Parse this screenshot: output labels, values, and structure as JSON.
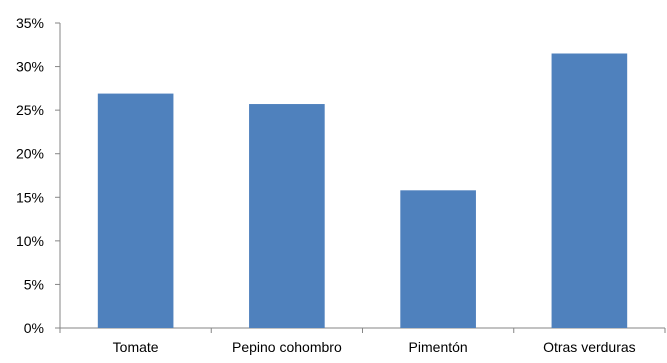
{
  "chart_data": {
    "type": "bar",
    "categories": [
      "Tomate",
      "Pepino cohombro",
      "Pimentón",
      "Otras verduras"
    ],
    "values": [
      26.9,
      25.7,
      15.8,
      31.5
    ],
    "ylim": [
      0,
      35
    ],
    "yticks": [
      0,
      5,
      10,
      15,
      20,
      25,
      30,
      35
    ],
    "ytick_labels": [
      "0%",
      "5%",
      "10%",
      "15%",
      "20%",
      "25%",
      "30%",
      "35%"
    ],
    "title": "",
    "xlabel": "",
    "ylabel": "",
    "grid": false,
    "legend": "none",
    "bar_color": "#4F81BD"
  }
}
